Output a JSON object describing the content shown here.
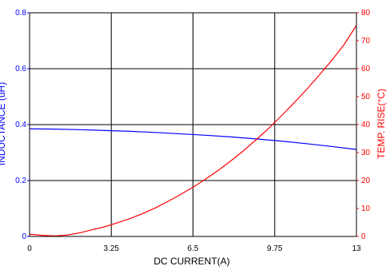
{
  "chart_data": {
    "type": "line",
    "xlabel": "DC CURRENT(A)",
    "ylabel_left": "INDUCTANCE (uH)",
    "ylabel_right": "TEMP. RISE(°C)",
    "xlim": [
      0,
      13
    ],
    "ylim_left": [
      0,
      0.8
    ],
    "ylim_right": [
      0,
      80
    ],
    "x_ticks": [
      "0",
      "3.25",
      "6.5",
      "9.75",
      "13"
    ],
    "y_left_ticks": [
      "0",
      "0.2",
      "0.4",
      "0.6",
      "0.8"
    ],
    "y_right_ticks": [
      "0",
      "10",
      "20",
      "30",
      "40",
      "50",
      "60",
      "70",
      "80"
    ],
    "grid": true,
    "colors": {
      "inductance": "#0000ff",
      "temp_rise": "#ff0000",
      "left_axis": "#0000ff",
      "right_axis": "#ff0000"
    },
    "series": [
      {
        "axis": "left",
        "color": "#0000ff",
        "x": [
          0,
          1,
          2,
          3,
          4,
          5,
          6,
          7,
          8,
          9,
          10,
          11,
          12,
          13
        ],
        "y": [
          0.385,
          0.384,
          0.382,
          0.379,
          0.376,
          0.372,
          0.367,
          0.362,
          0.356,
          0.349,
          0.341,
          0.332,
          0.322,
          0.311
        ]
      },
      {
        "axis": "right",
        "color": "#ff0000",
        "x": [
          0,
          0.5,
          1,
          1.5,
          2,
          2.5,
          3,
          3.5,
          4,
          4.5,
          5,
          5.5,
          6,
          6.5,
          7,
          7.5,
          8,
          8.5,
          9,
          9.5,
          10,
          10.5,
          11,
          11.5,
          12,
          12.5,
          13
        ],
        "y": [
          0.8,
          0.4,
          0.2,
          0.5,
          1.3,
          2.4,
          3.5,
          4.9,
          6.4,
          8.2,
          10.2,
          12.5,
          15.0,
          17.6,
          20.5,
          23.6,
          27.0,
          30.6,
          34.5,
          38.6,
          43.0,
          47.6,
          52.4,
          57.5,
          62.8,
          68.5,
          75.5
        ]
      }
    ]
  }
}
